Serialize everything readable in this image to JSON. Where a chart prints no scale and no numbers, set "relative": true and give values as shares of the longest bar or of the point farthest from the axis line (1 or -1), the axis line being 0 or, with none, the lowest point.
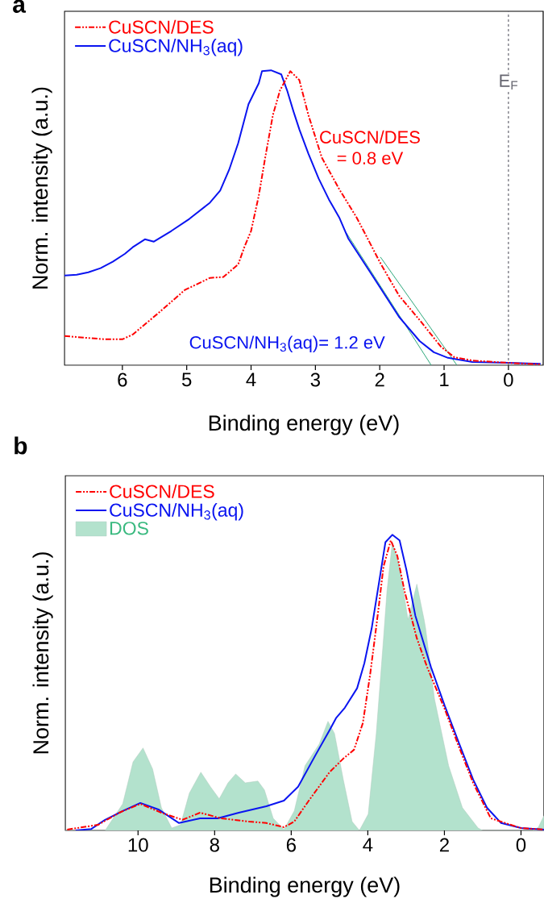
{
  "chart_data": [
    {
      "type": "line",
      "title": "a",
      "xlabel": "Binding energy (eV)",
      "ylabel": "Norm. intensity (a.u.)",
      "relative": true,
      "xlim": [
        6.9,
        -0.54
      ],
      "xticks": [
        6,
        5,
        4,
        3,
        2,
        1,
        0
      ],
      "legend": "top left",
      "tick_labels": "x",
      "series": [
        {
          "name": "CuSCN/DES",
          "color": "#ff0000",
          "line_style": "dashdot",
          "x": [
            6.9,
            6.28,
            6.0,
            5.84,
            5.45,
            5.03,
            4.64,
            4.43,
            4.2,
            4.1,
            4.0,
            3.88,
            3.78,
            3.66,
            3.55,
            3.39,
            3.25,
            3.11,
            2.9,
            2.63,
            2.36,
            2.19,
            1.98,
            1.7,
            1.38,
            1.05,
            0.84,
            0.56,
            0,
            -0.5
          ],
          "values": [
            0.099,
            0.088,
            0.088,
            0.104,
            0.175,
            0.255,
            0.296,
            0.299,
            0.342,
            0.403,
            0.455,
            0.575,
            0.704,
            0.849,
            0.932,
            0.997,
            0.967,
            0.849,
            0.704,
            0.597,
            0.501,
            0.43,
            0.342,
            0.236,
            0.153,
            0.063,
            0.027,
            0.016,
            0.008,
            0.003
          ]
        },
        {
          "name": "CuSCN/NH$_{3}$(aq)",
          "color": "#0a14f0",
          "line_style": "solid",
          "x": [
            6.9,
            6.71,
            6.53,
            6.34,
            6.15,
            5.96,
            5.84,
            5.65,
            5.51,
            5.24,
            4.96,
            4.64,
            4.48,
            4.34,
            4.2,
            4.04,
            3.88,
            3.83,
            3.69,
            3.53,
            3.44,
            3.34,
            3.25,
            3.11,
            2.95,
            2.79,
            2.63,
            2.49,
            2.09,
            1.7,
            1.38,
            1.16,
            0.94,
            0.56,
            0,
            -0.5
          ],
          "values": [
            0.304,
            0.307,
            0.315,
            0.329,
            0.351,
            0.378,
            0.4,
            0.427,
            0.419,
            0.455,
            0.496,
            0.551,
            0.592,
            0.663,
            0.753,
            0.885,
            0.956,
            0.997,
            1.0,
            0.986,
            0.932,
            0.86,
            0.8,
            0.718,
            0.633,
            0.562,
            0.501,
            0.43,
            0.296,
            0.164,
            0.082,
            0.044,
            0.025,
            0.011,
            0.008,
            0.005
          ]
        },
        {
          "color": "#2ca87a",
          "line_style": "solid",
          "x": [
            2.52,
            1.2
          ],
          "values": [
            0.449,
            0
          ]
        },
        {
          "color": "#2ca87a",
          "line_style": "solid",
          "x": [
            1.99,
            0.8
          ],
          "values": [
            0.367,
            0
          ]
        }
      ],
      "ref_lines": [
        {
          "axis": "x",
          "value": 0,
          "label": "E$_{F}$",
          "color": "#666670",
          "line_style": "dashed"
        }
      ],
      "annotations": [
        "CuSCN/DES",
        "= 0.8 eV",
        "CuSCN/NH$_{3}$(aq)= 1.2 eV"
      ]
    },
    {
      "type": "line",
      "title": "b",
      "xlabel": "Binding energy (eV)",
      "ylabel": "Norm. intensity (a.u.)",
      "relative": true,
      "xlim": [
        11.9,
        -0.6
      ],
      "xticks": [
        10,
        8,
        6,
        4,
        2,
        0
      ],
      "legend": "top left",
      "tick_labels": "x",
      "series": [
        {
          "name": "CuSCN/DES",
          "color": "#ff0000",
          "line_style": "dashdot",
          "x": [
            11.85,
            11.04,
            10.49,
            9.94,
            9.39,
            8.84,
            8.38,
            7.83,
            7.1,
            6.65,
            6.19,
            5.92,
            5.54,
            5.0,
            4.64,
            4.36,
            4.13,
            3.94,
            3.81,
            3.71,
            3.59,
            3.4,
            3.23,
            3.04,
            2.72,
            2.45,
            1.99,
            1.61,
            1.25,
            0.79,
            0,
            -0.6
          ],
          "values": [
            0.003,
            0.019,
            0.06,
            0.09,
            0.06,
            0.036,
            0.06,
            0.041,
            0.03,
            0.025,
            0.011,
            0.03,
            0.101,
            0.197,
            0.243,
            0.273,
            0.363,
            0.527,
            0.658,
            0.762,
            0.893,
            0.981,
            0.929,
            0.809,
            0.65,
            0.552,
            0.41,
            0.279,
            0.161,
            0.041,
            0.008,
            0.003
          ]
        },
        {
          "name": "CuSCN/NH$_{3}$(aq)",
          "color": "#0a14f0",
          "line_style": "solid",
          "x": [
            11.63,
            11.22,
            10.86,
            10.4,
            9.94,
            9.47,
            8.93,
            8.38,
            7.92,
            7.37,
            6.65,
            6.19,
            5.82,
            5.37,
            5.0,
            4.83,
            4.6,
            4.28,
            4.09,
            3.9,
            3.67,
            3.54,
            3.36,
            3.17,
            2.99,
            2.76,
            2.35,
            1.99,
            1.61,
            1.25,
            0.89,
            0.52,
            0,
            -0.6
          ],
          "values": [
            0,
            0.005,
            0.036,
            0.066,
            0.093,
            0.071,
            0.025,
            0.041,
            0.041,
            0.06,
            0.082,
            0.101,
            0.148,
            0.254,
            0.339,
            0.38,
            0.415,
            0.481,
            0.566,
            0.683,
            0.869,
            0.975,
            1.0,
            0.981,
            0.88,
            0.727,
            0.552,
            0.421,
            0.292,
            0.172,
            0.077,
            0.025,
            0.008,
            0.003
          ]
        },
        {
          "name": "DOS",
          "type": "area",
          "color": "#b3e2cd",
          "x": [
            11.9,
            10.86,
            10.4,
            10.13,
            9.87,
            9.62,
            9.39,
            9.12,
            8.89,
            8.66,
            8.36,
            8.11,
            7.88,
            7.65,
            7.45,
            7.2,
            6.87,
            6.7,
            6.47,
            6.19,
            5.92,
            5.64,
            5.27,
            5.04,
            4.87,
            4.64,
            4.41,
            4.22,
            3.99,
            3.78,
            3.59,
            3.5,
            3.36,
            3.17,
            2.95,
            2.72,
            2.53,
            2.49,
            2.26,
            1.89,
            1.53,
            1.12,
            1.0,
            -0.3,
            -0.45,
            -0.6
          ],
          "values": [
            0,
            0,
            0.09,
            0.232,
            0.279,
            0.208,
            0.077,
            0.008,
            0.019,
            0.126,
            0.197,
            0.148,
            0.107,
            0.161,
            0.191,
            0.161,
            0.167,
            0.137,
            0.041,
            0.003,
            0.066,
            0.219,
            0.292,
            0.369,
            0.328,
            0.172,
            0.03,
            0,
            0.055,
            0.328,
            0.65,
            0.809,
            0.975,
            0.893,
            0.713,
            0.833,
            0.713,
            0.683,
            0.445,
            0.219,
            0.077,
            0.008,
            0,
            0,
            0.01,
            0.05
          ]
        }
      ]
    }
  ]
}
